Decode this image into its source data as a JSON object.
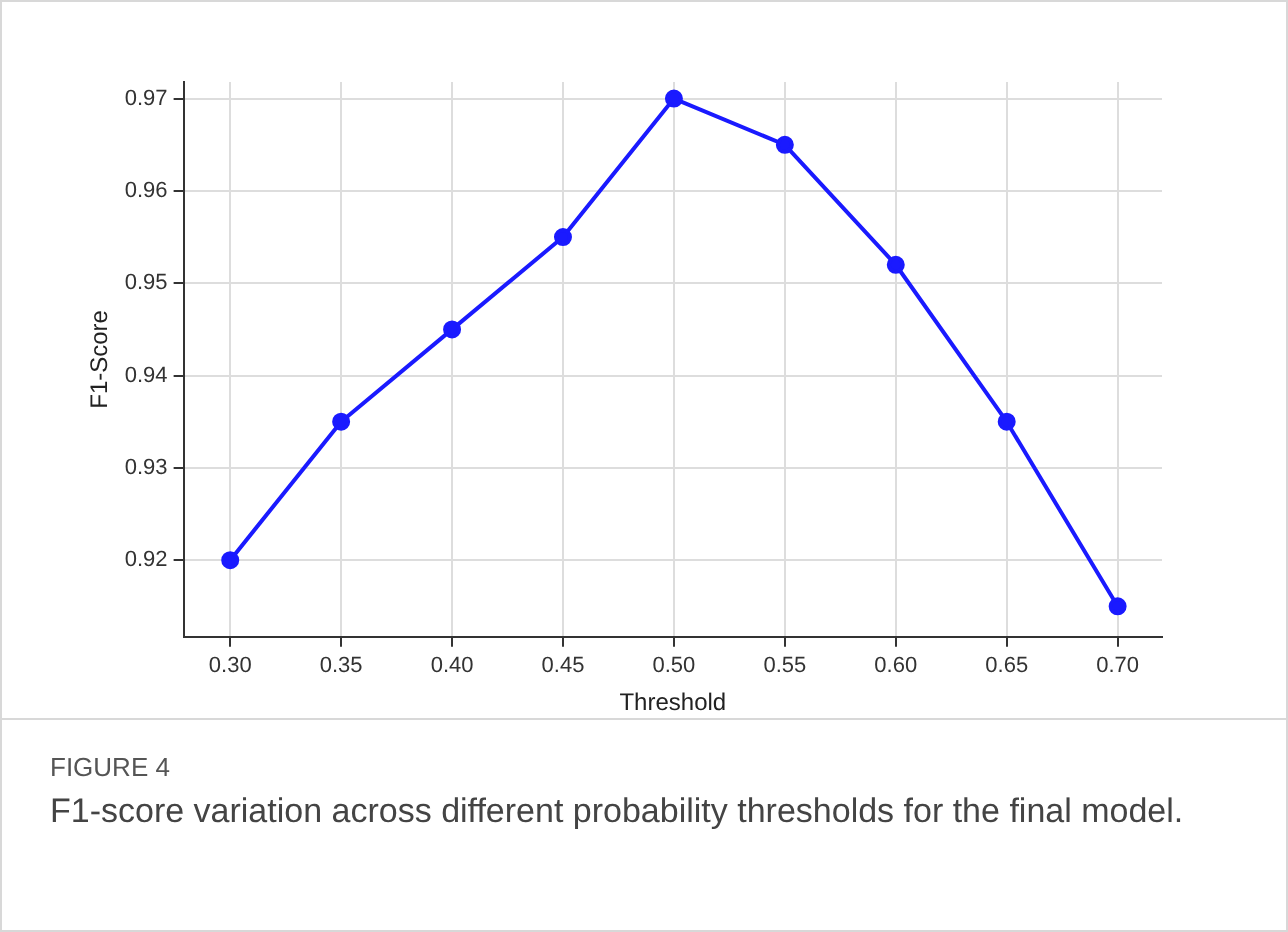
{
  "chart_data": {
    "type": "line",
    "xlabel": "Threshold",
    "ylabel": "F1-Score",
    "x": [
      0.3,
      0.35,
      0.4,
      0.45,
      0.5,
      0.55,
      0.6,
      0.65,
      0.7
    ],
    "series": [
      {
        "color": "#1a1aff",
        "values": [
          0.92,
          0.935,
          0.945,
          0.955,
          0.97,
          0.965,
          0.952,
          0.935,
          0.915
        ]
      }
    ],
    "xlim": [
      0.279,
      0.72
    ],
    "xticks": [
      {
        "value": 0.3,
        "label": "0.30"
      },
      {
        "value": 0.35,
        "label": "0.35"
      },
      {
        "value": 0.4,
        "label": "0.40"
      },
      {
        "value": 0.45,
        "label": "0.45"
      },
      {
        "value": 0.5,
        "label": "0.50"
      },
      {
        "value": 0.55,
        "label": "0.55"
      },
      {
        "value": 0.6,
        "label": "0.60"
      },
      {
        "value": 0.65,
        "label": "0.65"
      },
      {
        "value": 0.7,
        "label": "0.70"
      }
    ],
    "ylim": [
      0.9117,
      0.9718
    ],
    "yticks": [
      0.92,
      0.93,
      0.94,
      0.95,
      0.96,
      0.97
    ],
    "grid": true,
    "marker": "circle",
    "line_style": "solid",
    "annotations": [
      "FIGURE 4",
      "F1-score variation across different probability thresholds for the final model."
    ]
  }
}
